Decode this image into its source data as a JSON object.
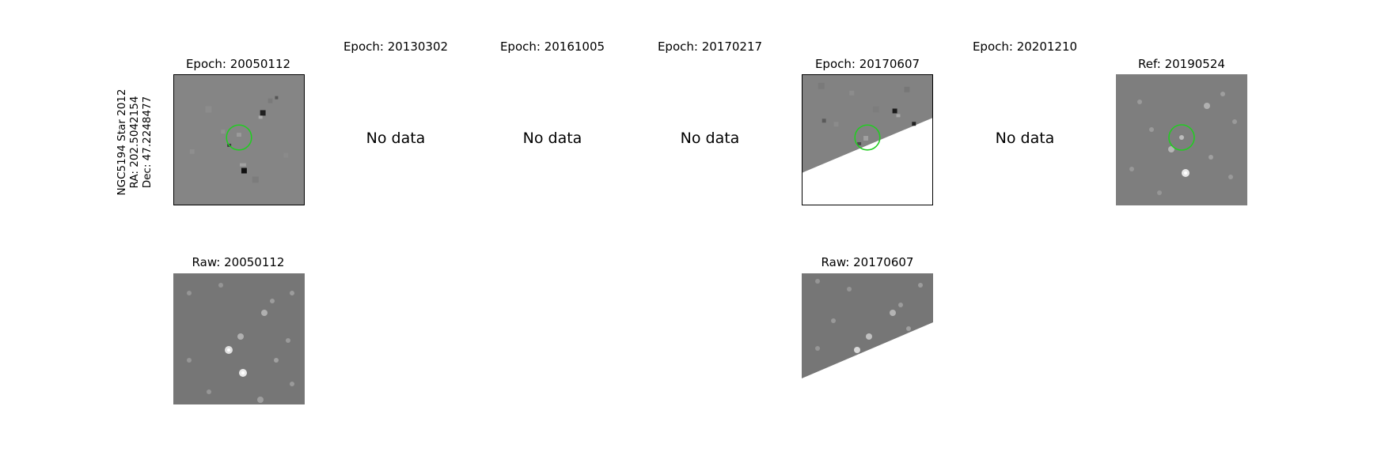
{
  "row1": {
    "titles": [
      "Epoch: 20050112",
      "Epoch: 20130302",
      "Epoch: 20161005",
      "Epoch: 20170217",
      "Epoch: 20170607",
      "Epoch: 20201210",
      "Ref: 20190524"
    ],
    "no_data_label": "No data"
  },
  "row2": {
    "titles": [
      "Raw: 20050112",
      "Raw: 20170607"
    ]
  },
  "star_label": {
    "line1": "NGC5194 Star 2012",
    "line2": "RA: 202.5042154",
    "line3": "Dec: 47.2248477"
  },
  "colors": {
    "marker_circle": "#22cc22",
    "diff_background": "#808080",
    "raw_background": "#777777"
  }
}
